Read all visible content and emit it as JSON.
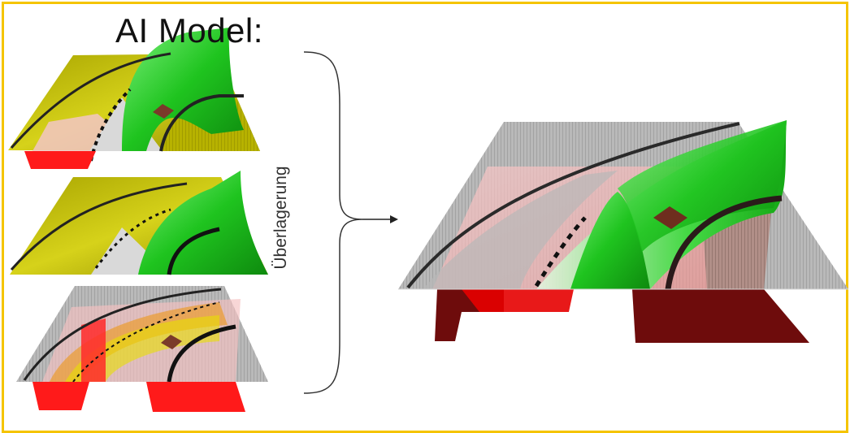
{
  "title": "AI Model:",
  "brace_label": "Überlagerung",
  "colors": {
    "frame": "#f5c400",
    "yellow_surface": "#c9c400",
    "green_surface": "#2fd12f",
    "red_block": "#ff1a1a",
    "dark_red_block": "#6e0c0c",
    "gray_surface": "#a9a9a9",
    "pink_overlay": "#f4b8b8"
  },
  "panels": [
    {
      "name": "panel-1",
      "surfaces": [
        "yellow-terrain",
        "green-ridge",
        "red-block",
        "gray-floor"
      ]
    },
    {
      "name": "panel-2",
      "surfaces": [
        "yellow-terrain",
        "green-ridge",
        "gray-floor"
      ]
    },
    {
      "name": "panel-3",
      "surfaces": [
        "gray-grid",
        "orange-band",
        "red-blocks"
      ]
    }
  ],
  "result": {
    "surfaces": [
      "gray-grid",
      "pink-overlay",
      "green-ridge",
      "dark-red-blocks"
    ]
  }
}
